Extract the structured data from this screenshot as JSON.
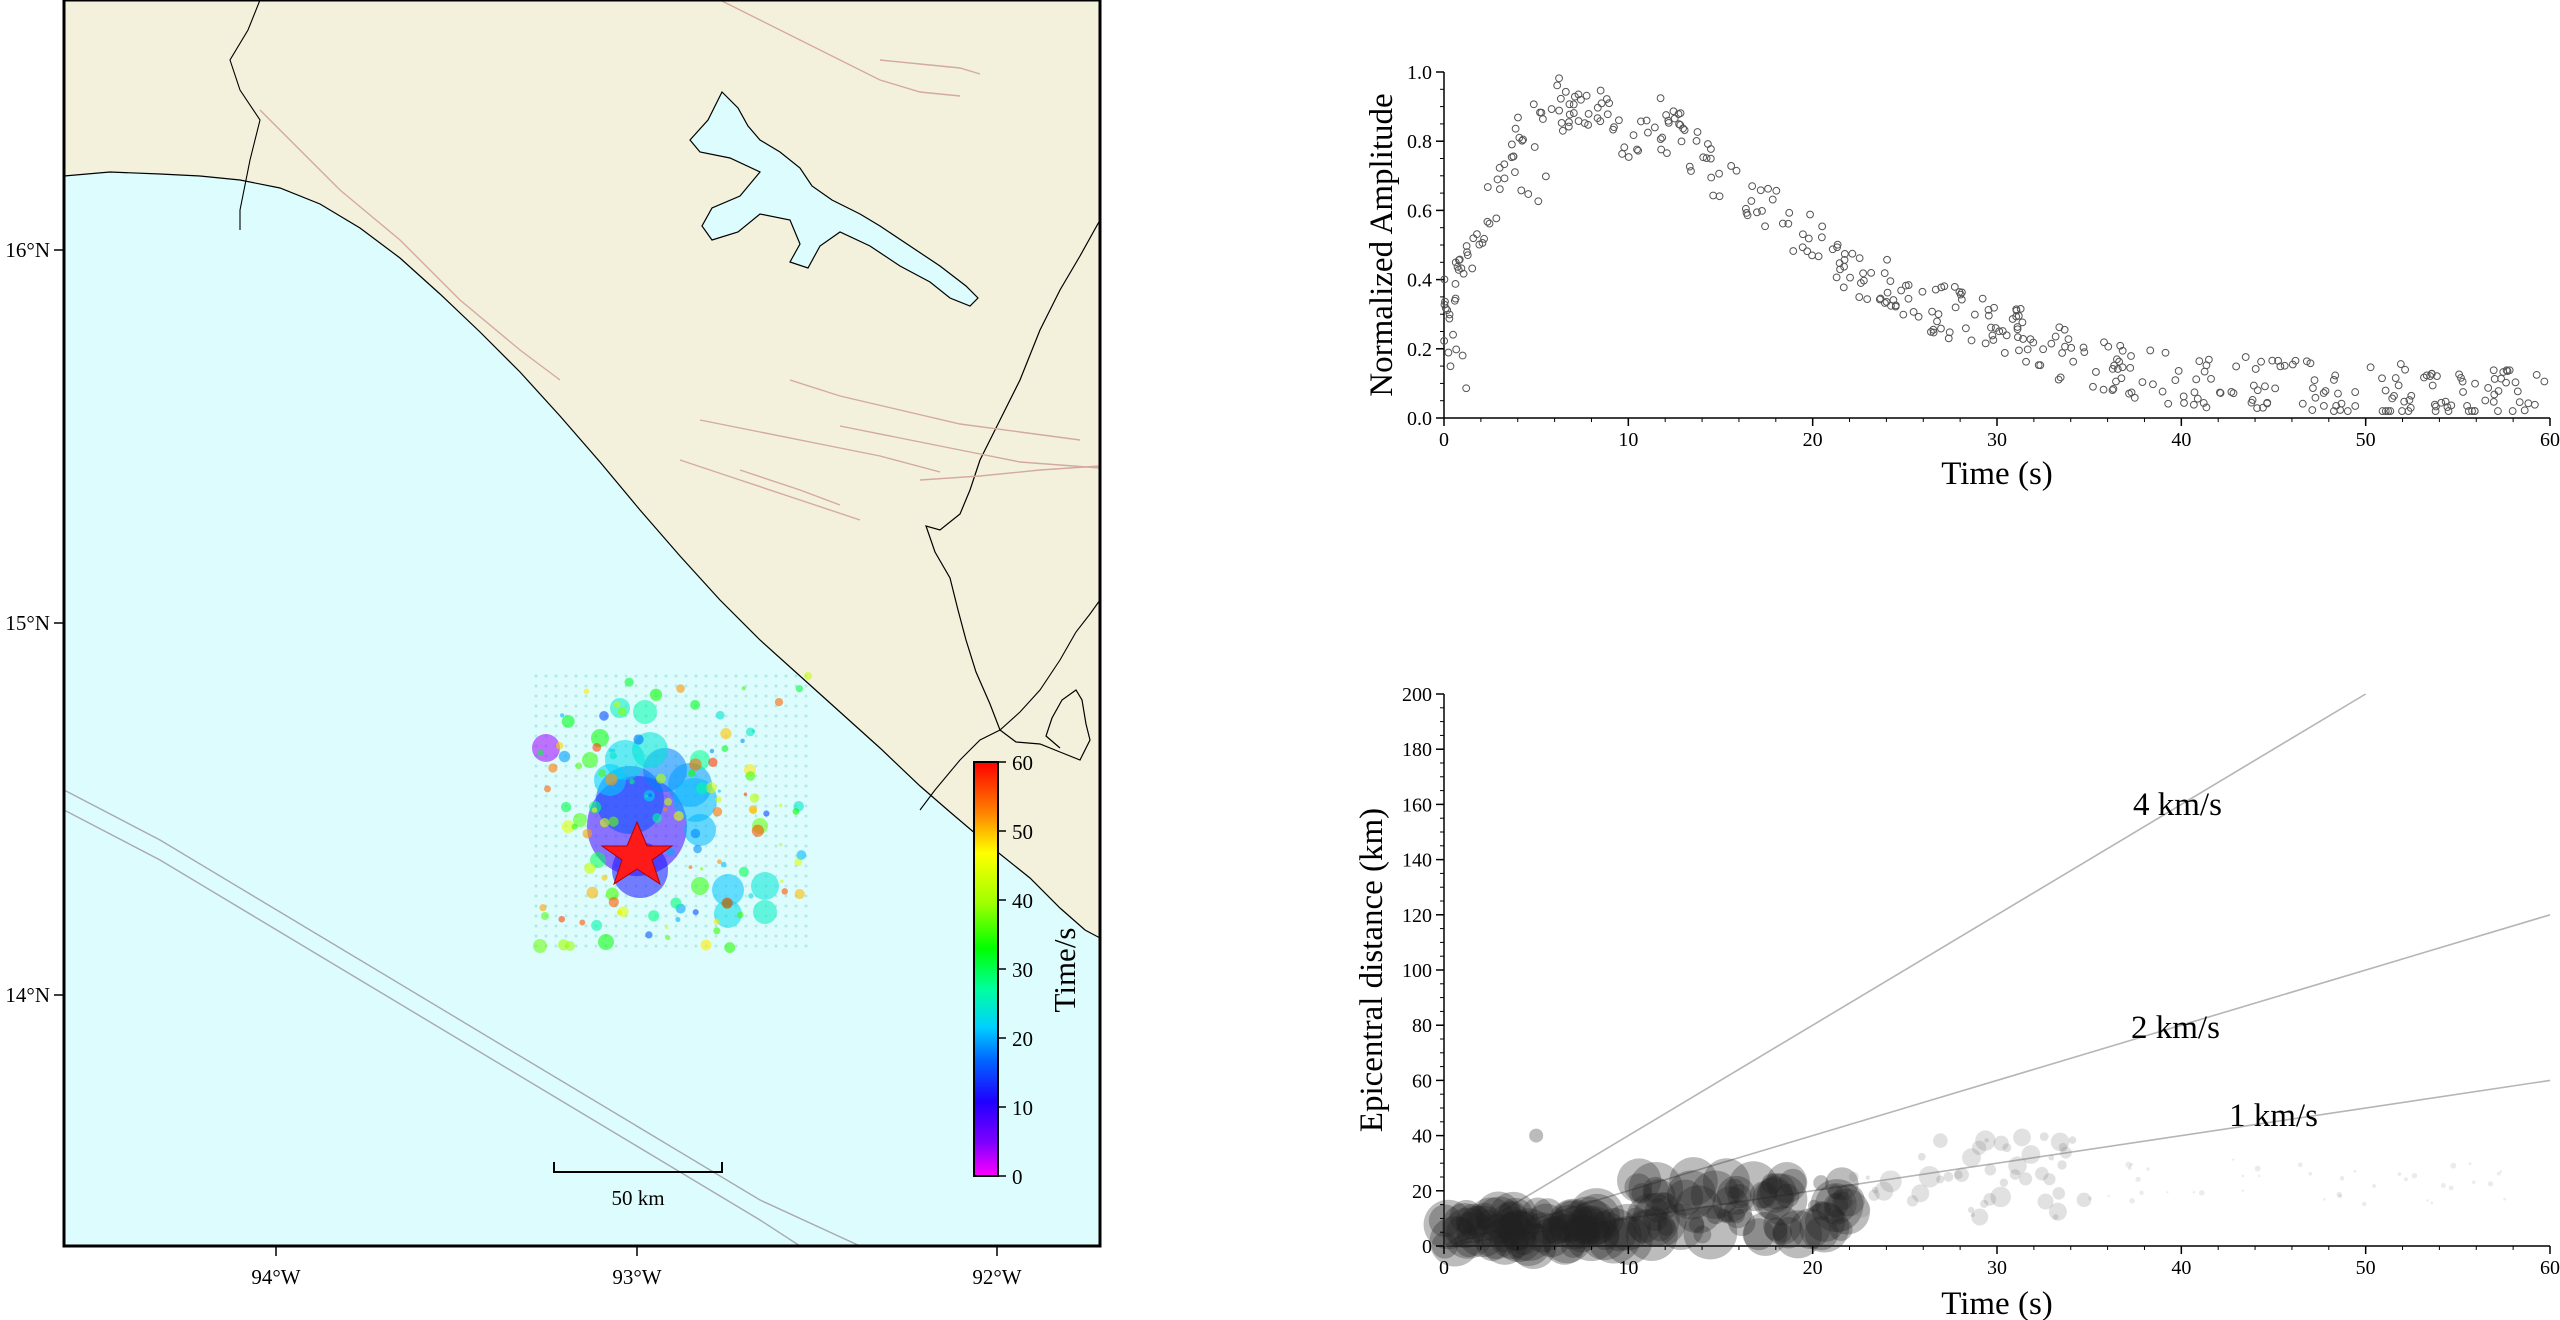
{
  "map": {
    "lon_ticks": [
      "94°W",
      "93°W",
      "92°W"
    ],
    "lat_ticks": [
      "16°N",
      "15°N",
      "14°N"
    ],
    "scale_label": "50 km",
    "colorbar": {
      "label": "Time/s",
      "ticks": [
        "0",
        "10",
        "20",
        "30",
        "40",
        "50",
        "60"
      ]
    },
    "colors": {
      "land": "#f3f1dc",
      "sea": "#dcfcfd",
      "border": "#000000",
      "fault": "#d4a9a0",
      "epicenter": "#ff1a1a"
    }
  },
  "chart_data": [
    {
      "type": "scatter",
      "xlabel": "Time (s)",
      "ylabel": "Normalized Amplitude",
      "xlim": [
        0,
        60
      ],
      "ylim": [
        0,
        1.0
      ],
      "x_ticks": [
        "0",
        "10",
        "20",
        "30",
        "40",
        "50",
        "60"
      ],
      "y_ticks": [
        "0.0",
        "0.2",
        "0.4",
        "0.6",
        "0.8",
        "1.0"
      ],
      "envelope": {
        "x": [
          0,
          1,
          2,
          3,
          4,
          5,
          6,
          7,
          8,
          9,
          10,
          11,
          12,
          13,
          14,
          15,
          16,
          17,
          18,
          19,
          20,
          22,
          24,
          26,
          28,
          30,
          32,
          34,
          36,
          38,
          40,
          45,
          50,
          55,
          60
        ],
        "y": [
          0.33,
          0.4,
          0.55,
          0.7,
          0.8,
          0.86,
          0.9,
          0.92,
          0.9,
          0.85,
          0.82,
          0.86,
          0.84,
          0.8,
          0.74,
          0.7,
          0.68,
          0.64,
          0.6,
          0.56,
          0.52,
          0.44,
          0.38,
          0.33,
          0.3,
          0.27,
          0.23,
          0.17,
          0.15,
          0.13,
          0.11,
          0.1,
          0.08,
          0.07,
          0.06
        ]
      }
    },
    {
      "type": "scatter",
      "xlabel": "Time (s)",
      "ylabel": "Epicentral distance (km)",
      "xlim": [
        0,
        60
      ],
      "ylim": [
        0,
        200
      ],
      "x_ticks": [
        "0",
        "10",
        "20",
        "30",
        "40",
        "50",
        "60"
      ],
      "y_ticks": [
        "0",
        "20",
        "40",
        "60",
        "80",
        "100",
        "120",
        "140",
        "160",
        "180",
        "200"
      ],
      "velocity_lines": [
        {
          "label": "4 km/s",
          "slope": 4
        },
        {
          "label": "2 km/s",
          "slope": 2
        },
        {
          "label": "1 km/s",
          "slope": 1
        }
      ],
      "clusters": [
        {
          "x_range": [
            0,
            10
          ],
          "y_range": [
            0,
            12
          ]
        },
        {
          "x_range": [
            10,
            22
          ],
          "y_range": [
            4,
            24
          ]
        },
        {
          "x_range": [
            22,
            35
          ],
          "y_range": [
            10,
            40
          ]
        },
        {
          "x_range": [
            35,
            60
          ],
          "y_range": [
            15,
            32
          ]
        }
      ]
    }
  ]
}
